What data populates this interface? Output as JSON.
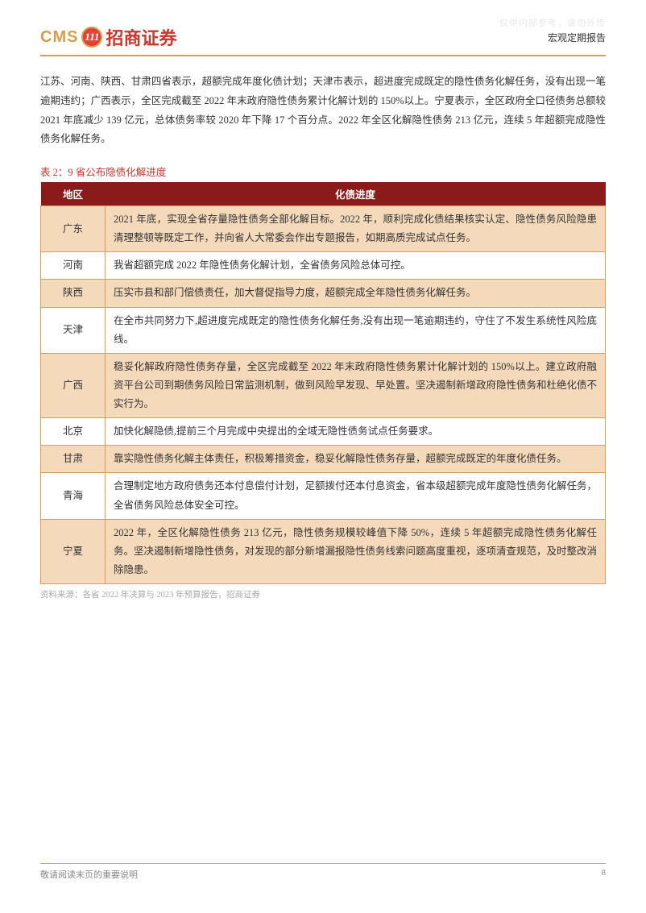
{
  "watermark": "仅供内部参考，请勿外传",
  "header": {
    "logo_en": "CMS",
    "logo_mark": "111",
    "logo_cn": "招商证券",
    "report_type": "宏观定期报告"
  },
  "intro": "江苏、河南、陕西、甘肃四省表示，超额完成年度化债计划；天津市表示，超进度完成既定的隐性债务化解任务，没有出现一笔逾期违约；广西表示，全区完成截至 2022 年末政府隐性债务累计化解计划的 150%以上。宁夏表示，全区政府全口径债务总额较 2021 年底减少 139 亿元，总体债务率较 2020 年下降 17 个百分点。2022 年全区化解隐性债务 213 亿元，连续 5 年超额完成隐性债务化解任务。",
  "table": {
    "title": "表 2：9 省公布隐债化解进度",
    "columns": [
      "地区",
      "化债进度"
    ],
    "rows": [
      {
        "region": "广东",
        "progress": "2021 年底，实现全省存量隐性债务全部化解目标。2022 年，顺利完成化债结果核实认定、隐性债务风险隐患清理整顿等既定工作，并向省人大常委会作出专题报告，如期高质完成试点任务。",
        "shade": true
      },
      {
        "region": "河南",
        "progress": "我省超额完成 2022 年隐性债务化解计划，全省债务风险总体可控。",
        "shade": false
      },
      {
        "region": "陕西",
        "progress": "压实市县和部门偿债责任，加大督促指导力度，超额完成全年隐性债务化解任务。",
        "shade": true
      },
      {
        "region": "天津",
        "progress": "在全市共同努力下,超进度完成既定的隐性债务化解任务,没有出现一笔逾期违约，守住了不发生系统性风险底线。",
        "shade": false
      },
      {
        "region": "广西",
        "progress": "稳妥化解政府隐性债务存量，全区完成截至 2022 年末政府隐性债务累计化解计划的 150%以上。建立政府融资平台公司到期债务风险日常监测机制，做到风险早发现、早处置。坚决遏制新增政府隐性债务和杜绝化债不实行为。",
        "shade": true
      },
      {
        "region": "北京",
        "progress": "加快化解隐债,提前三个月完成中央提出的全域无隐性债务试点任务要求。",
        "shade": false
      },
      {
        "region": "甘肃",
        "progress": "靠实隐性债务化解主体责任，积极筹措资金，稳妥化解隐性债务存量，超额完成既定的年度化债任务。",
        "shade": true
      },
      {
        "region": "青海",
        "progress": "合理制定地方政府债务还本付息偿付计划，足额拨付还本付息资金，省本级超额完成年度隐性债务化解任务，全省债务风险总体安全可控。",
        "shade": false
      },
      {
        "region": "宁夏",
        "progress": "2022 年，全区化解隐性债务 213 亿元，隐性债务规模较峰值下降 50%，连续 5 年超额完成隐性债务化解任务。坚决遏制新增隐性债务，对发现的部分新增漏报隐性债务线索问题高度重视，逐项清查规范，及时整改消除隐患。",
        "shade": true
      }
    ],
    "source": "资料来源：各省 2022 年决算与 2023 年预算报告，招商证券"
  },
  "footer": {
    "note": "敬请阅读末页的重要说明",
    "page": "8"
  }
}
